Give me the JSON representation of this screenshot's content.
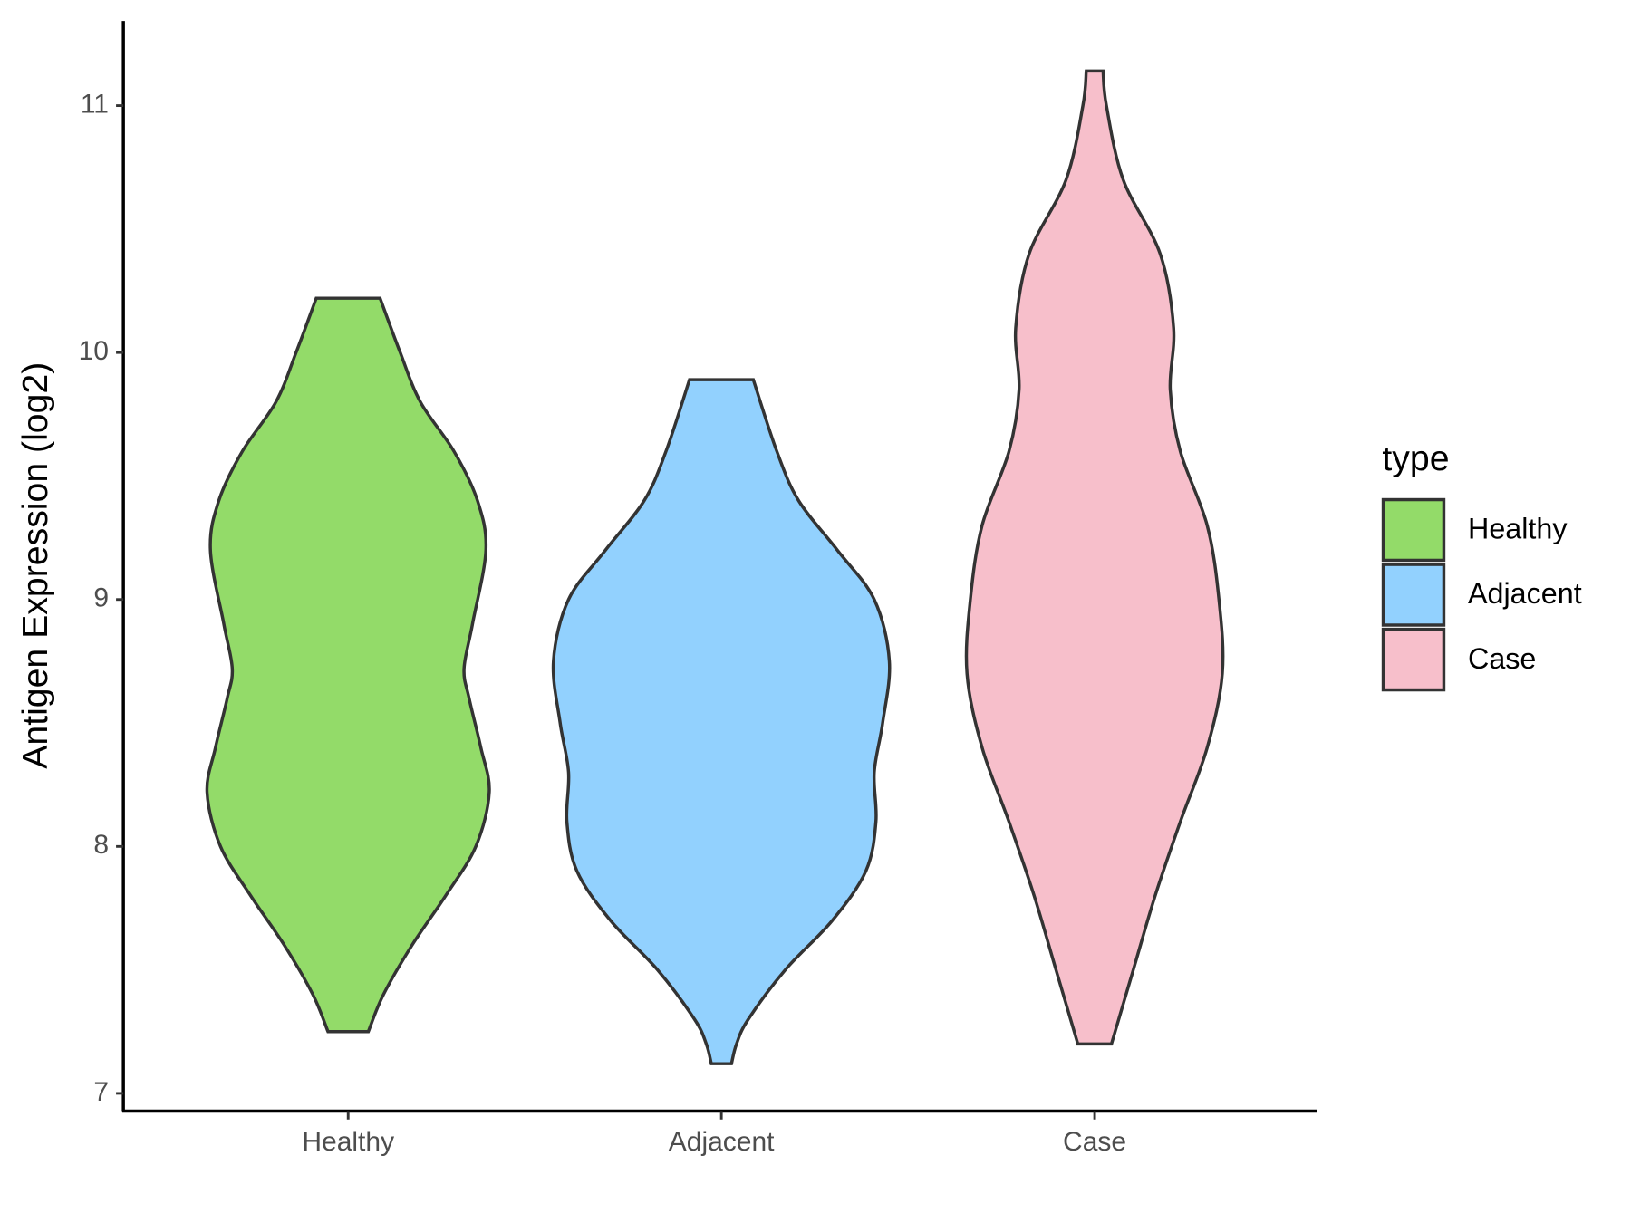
{
  "chart_data": {
    "type": "violin",
    "y_label": "Antigen Expression (log2)",
    "categories": [
      "Healthy",
      "Adjacent",
      "Case"
    ],
    "ylim": [
      6.928,
      11.343
    ],
    "yticks": [
      7,
      8,
      9,
      10,
      11
    ],
    "legend_title": "type",
    "legend": "right",
    "series": [
      {
        "name": "Healthy",
        "color": "#93db69",
        "y": [
          7.25,
          7.4,
          7.6,
          7.8,
          8.0,
          8.22,
          8.4,
          8.6,
          8.72,
          8.9,
          9.2,
          9.4,
          9.6,
          9.8,
          10.0,
          10.22
        ],
        "density": [
          0.12,
          0.21,
          0.38,
          0.58,
          0.76,
          0.84,
          0.79,
          0.72,
          0.69,
          0.74,
          0.82,
          0.77,
          0.63,
          0.43,
          0.31,
          0.19
        ]
      },
      {
        "name": "Adjacent",
        "color": "#92d1fe",
        "y": [
          7.12,
          7.2,
          7.3,
          7.5,
          7.7,
          7.9,
          8.1,
          8.3,
          8.5,
          8.75,
          9.0,
          9.2,
          9.4,
          9.6,
          9.89
        ],
        "density": [
          0.06,
          0.09,
          0.16,
          0.38,
          0.66,
          0.86,
          0.92,
          0.91,
          0.96,
          1.0,
          0.91,
          0.69,
          0.46,
          0.33,
          0.19
        ]
      },
      {
        "name": "Case",
        "color": "#f7bfcb",
        "y": [
          7.2,
          7.5,
          7.8,
          8.1,
          8.4,
          8.7,
          9.0,
          9.3,
          9.6,
          9.85,
          10.1,
          10.4,
          10.7,
          11.0,
          11.14
        ],
        "density": [
          0.1,
          0.23,
          0.36,
          0.51,
          0.67,
          0.76,
          0.74,
          0.67,
          0.51,
          0.45,
          0.47,
          0.39,
          0.17,
          0.07,
          0.05
        ]
      }
    ]
  }
}
